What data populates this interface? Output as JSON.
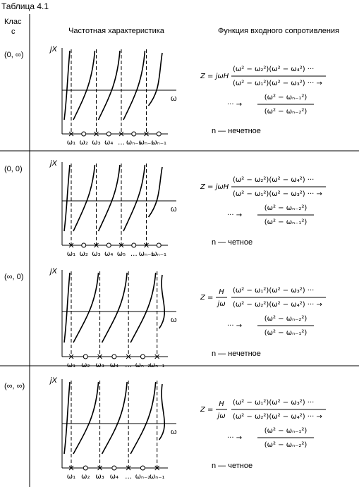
{
  "header": {
    "title": "Таблица 4.1",
    "class_lines": [
      "Клас",
      "с"
    ],
    "columns": [
      "Частотная характеристика",
      "Функция входного сопротивления"
    ]
  },
  "rows": [
    {
      "class": "(0, ∞)",
      "y_label": "jX",
      "x_label": "ω",
      "x_ticks": [
        "ω₁",
        "ω₂",
        "ω₃",
        "ω₄",
        "…",
        "ωₙ₋₃",
        "ωₙ₋₂",
        "ωₙ₋₁"
      ],
      "prefix": "Z = jωH",
      "num1": "(ω² − ω₂²)(ω² − ω₄²) ···",
      "den1": "(ω² − ω₁²)(ω² − ω₃²) ··· →",
      "lead": "··· →",
      "num2": "(ω² − ωₙ₋₁²)",
      "den2": "(ω² − ωₙ₋₂²)",
      "note": "n — нечетное"
    },
    {
      "class": "(0, 0)",
      "y_label": "jX",
      "x_label": "ω",
      "x_ticks": [
        "ω₁",
        "ω₂",
        "ω₃",
        "ω₄",
        "ω₅",
        "…",
        "ωₙ₋₂",
        "ωₙ₋₁"
      ],
      "prefix": "Z = jωH",
      "num1": "(ω² − ω₂²)(ω² − ω₄²) ···",
      "den1": "(ω² − ω₁²)(ω² − ω₃²) ··· →",
      "lead": "··· →",
      "num2": "(ω² − ωₙ₋₂²)",
      "den2": "(ω² − ωₙ₋₁²)",
      "note": "n — четное"
    },
    {
      "class": "(∞, 0)",
      "y_label": "jX",
      "x_label": "ω",
      "x_ticks": [
        "ω₁",
        "ω₂",
        "ω₃",
        "ω₄",
        "…",
        "ωₙ₋₂",
        "ωₙ₋₁"
      ],
      "prefix": "Z =",
      "frac_num": "H",
      "frac_den": "jω",
      "num1": "(ω² − ω₁²)(ω² − ω₃²) ···",
      "den1": "(ω² − ω₂²)(ω² − ω₄²) ··· →",
      "lead": "··· →",
      "num2": "(ω² − ωₙ₋₂²)",
      "den2": "(ω² − ωₙ₋₁²)",
      "note": "n — нечетное"
    },
    {
      "class": "(∞, ∞)",
      "y_label": "jX",
      "x_label": "ω",
      "x_ticks": [
        "ω₁",
        "ω₂",
        "ω₃",
        "ω₄",
        "…",
        "ωₙ₋₂",
        "ωₙ₋₁"
      ],
      "prefix": "Z =",
      "frac_num": "H",
      "frac_den": "jω",
      "num1": "(ω² − ω₁²)(ω² − ω₃²) ···",
      "den1": "(ω² − ω₂²)(ω² − ω₄²) ··· →",
      "lead": "··· →",
      "num2": "(ω² − ωₙ₋₁²)",
      "den2": "(ω² − ωₙ₋₂²)",
      "note": "n — четное"
    }
  ]
}
